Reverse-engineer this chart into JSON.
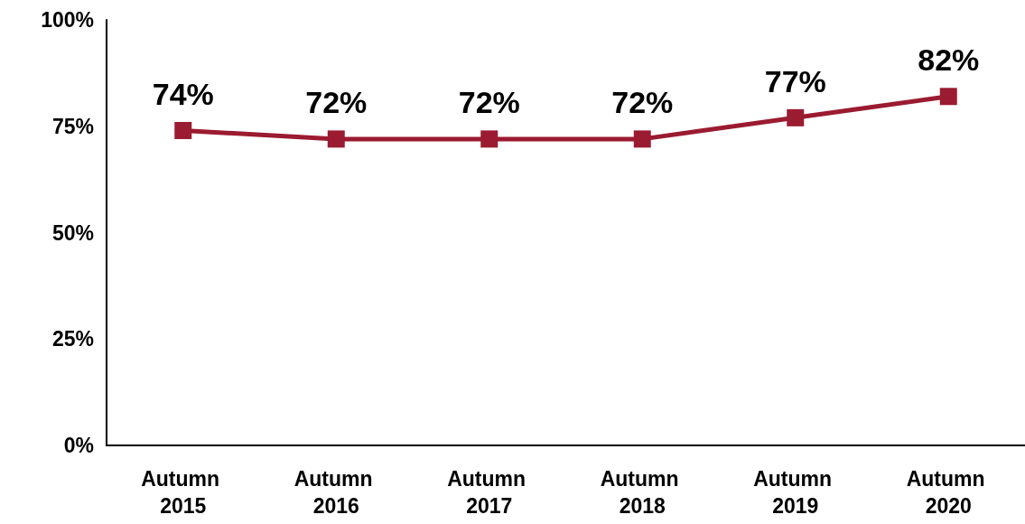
{
  "chart_data": {
    "type": "line",
    "categories": [
      "Autumn 2015",
      "Autumn 2016",
      "Autumn 2017",
      "Autumn 2018",
      "Autumn 2019",
      "Autumn 2020"
    ],
    "series": [
      {
        "color": "#9b1b30",
        "values": [
          74,
          72,
          72,
          72,
          77,
          82
        ],
        "value_labels": [
          "74%",
          "72%",
          "72%",
          "72%",
          "77%",
          "82%"
        ]
      }
    ],
    "ylim": [
      0,
      100
    ],
    "yticks": [
      {
        "value": 0,
        "label": "0%"
      },
      {
        "value": 25,
        "label": "25%"
      },
      {
        "value": 50,
        "label": "50%"
      },
      {
        "value": 75,
        "label": "75%"
      },
      {
        "value": 100,
        "label": "100%"
      }
    ],
    "grid": false,
    "marker": "square",
    "line_style": "solid"
  }
}
